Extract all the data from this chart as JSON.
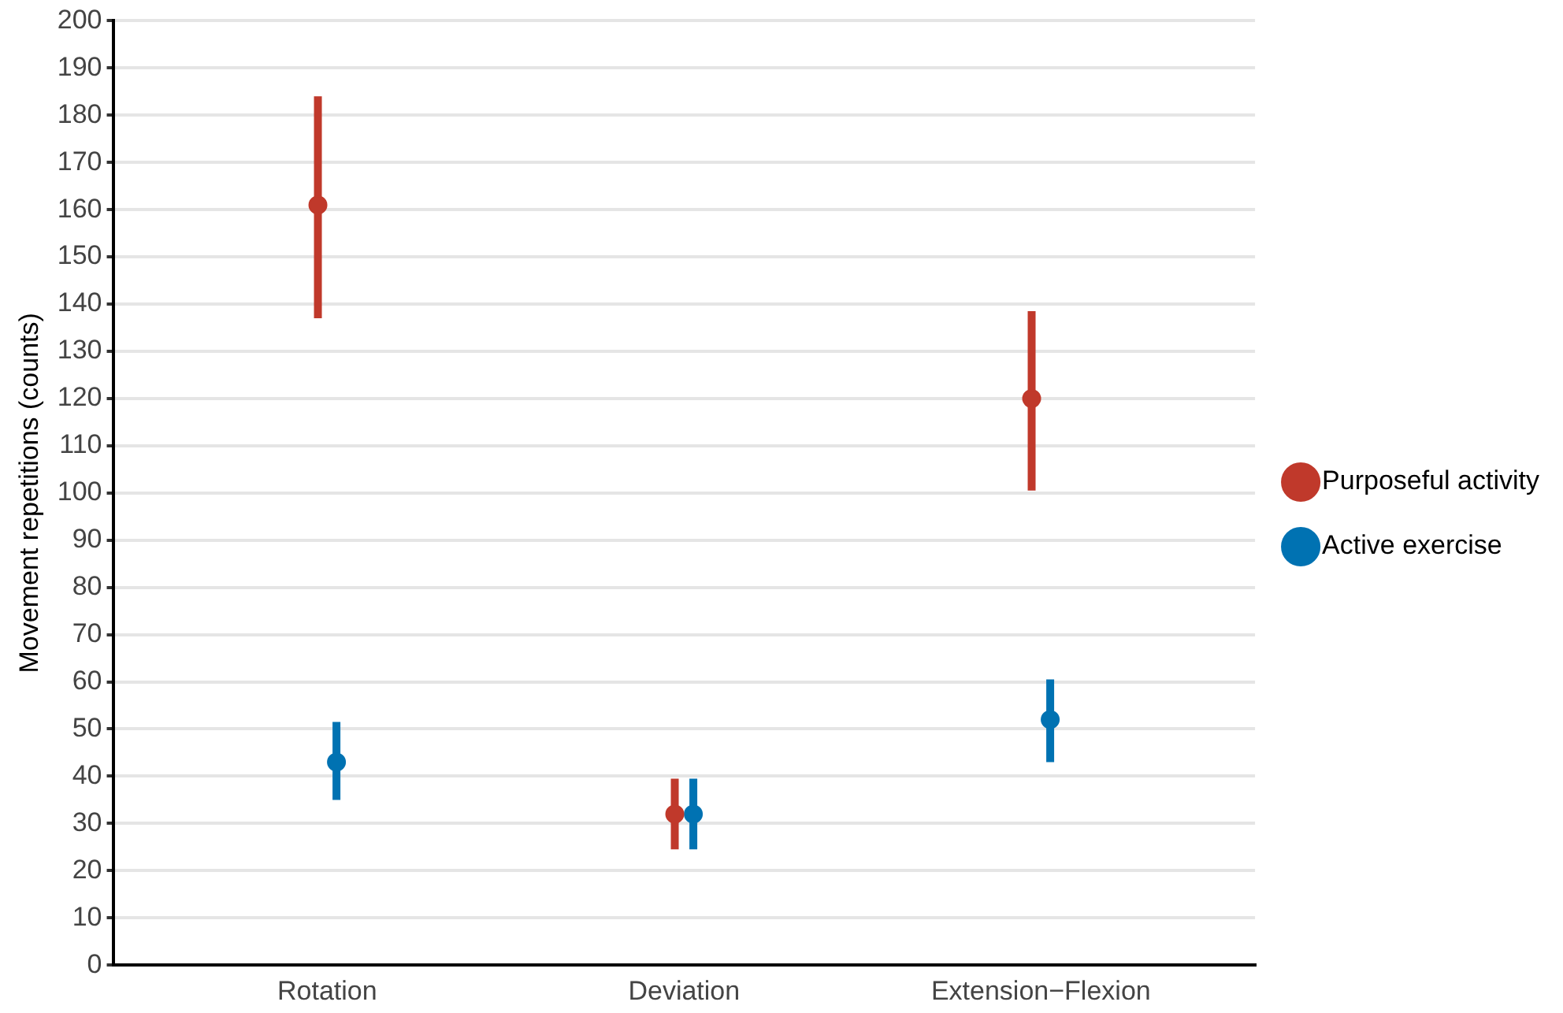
{
  "chart_data": {
    "type": "scatter",
    "ylabel": "Movement repetitions (counts)",
    "categories": [
      "Rotation",
      "Deviation",
      "Extension−Flexion"
    ],
    "series": [
      {
        "name": "Purposeful activity",
        "color": "#c0392b",
        "values": [
          161,
          32,
          120
        ],
        "errors": [
          [
            137,
            184
          ],
          [
            24.5,
            39.5
          ],
          [
            100.5,
            138.5
          ]
        ]
      },
      {
        "name": "Active exercise",
        "color": "#0072b2",
        "values": [
          43,
          32,
          52
        ],
        "errors": [
          [
            35,
            51.5
          ],
          [
            24.5,
            39.5
          ],
          [
            43,
            60.5
          ]
        ]
      }
    ],
    "ylim": [
      0,
      200
    ],
    "yticks": [
      0,
      10,
      20,
      30,
      40,
      50,
      60,
      70,
      80,
      90,
      100,
      110,
      120,
      130,
      140,
      150,
      160,
      170,
      180,
      190,
      200
    ],
    "grid": "y",
    "legend": "right",
    "marker": "circle"
  }
}
